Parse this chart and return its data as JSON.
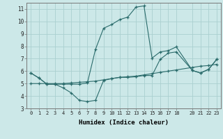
{
  "xlabel": "Humidex (Indice chaleur)",
  "bg_color": "#cce8e8",
  "line_color": "#2a6b6b",
  "grid_color": "#aad0d0",
  "xlim": [
    -0.5,
    23.5
  ],
  "ylim": [
    3,
    11.5
  ],
  "xtick_vals": [
    0,
    1,
    2,
    3,
    4,
    5,
    6,
    7,
    8,
    9,
    10,
    11,
    12,
    13,
    14,
    15,
    16,
    17,
    18,
    20,
    21,
    22,
    23
  ],
  "xtick_labels": [
    "0",
    "1",
    "2",
    "3",
    "4",
    "5",
    "6",
    "7",
    "8",
    "9",
    "10",
    "11",
    "12",
    "13",
    "14",
    "15",
    "16",
    "17",
    "18",
    "20",
    "21",
    "22",
    "23"
  ],
  "ytick_vals": [
    3,
    4,
    5,
    6,
    7,
    8,
    9,
    10,
    11
  ],
  "ytick_labels": [
    "3",
    "4",
    "5",
    "6",
    "7",
    "8",
    "9",
    "10",
    "11"
  ],
  "line1_x": [
    0,
    1,
    2,
    3,
    4,
    5,
    6,
    7,
    8,
    9,
    10,
    11,
    12,
    13,
    14,
    15,
    16,
    17,
    18,
    20,
    21,
    22,
    23
  ],
  "line1_y": [
    5.85,
    5.45,
    4.95,
    4.95,
    4.65,
    4.25,
    3.65,
    3.55,
    3.65,
    5.25,
    5.4,
    5.5,
    5.5,
    5.55,
    5.65,
    5.65,
    6.95,
    7.45,
    7.55,
    6.05,
    5.85,
    6.15,
    6.95
  ],
  "line2_x": [
    0,
    1,
    2,
    3,
    4,
    5,
    6,
    7,
    8,
    9,
    10,
    11,
    12,
    13,
    14,
    15,
    16,
    17,
    18,
    20,
    21,
    22,
    23
  ],
  "line2_y": [
    5.85,
    5.45,
    4.95,
    4.95,
    4.95,
    4.95,
    4.95,
    5.05,
    7.75,
    9.45,
    9.75,
    10.15,
    10.35,
    11.15,
    11.25,
    7.05,
    7.55,
    7.65,
    7.95,
    6.05,
    5.85,
    6.15,
    6.95
  ],
  "line3_x": [
    0,
    1,
    2,
    3,
    4,
    5,
    6,
    7,
    8,
    9,
    10,
    11,
    12,
    13,
    14,
    15,
    16,
    17,
    18,
    20,
    21,
    22,
    23
  ],
  "line3_y": [
    5.0,
    5.0,
    5.0,
    5.0,
    5.0,
    5.05,
    5.1,
    5.15,
    5.2,
    5.3,
    5.4,
    5.5,
    5.55,
    5.6,
    5.7,
    5.8,
    5.9,
    6.0,
    6.1,
    6.3,
    6.4,
    6.45,
    6.55
  ]
}
